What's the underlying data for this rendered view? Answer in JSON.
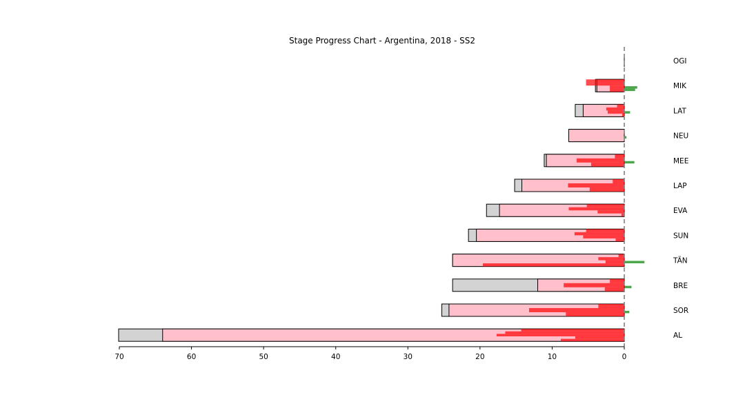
{
  "chart_data": {
    "type": "bar",
    "title": "Stage Progress Chart - Argentina, 2018 - SS2",
    "xlabel": "",
    "ylabel": "",
    "xlim": [
      70,
      -3
    ],
    "xticks": [
      70,
      60,
      50,
      40,
      30,
      20,
      10,
      0
    ],
    "reference_line": 0,
    "colors": {
      "gap_bar": "#d3d3d3",
      "split_bar": "#ffc0cb",
      "loss_segment": "#ff0000",
      "gain_segment": "#008000",
      "reference_line": "#808080"
    },
    "drivers": [
      {
        "name": "OGI",
        "overall_gap": 0,
        "split_gap": 0,
        "losses": [],
        "gains": []
      },
      {
        "name": "MIK",
        "overall_gap": 4,
        "split_gap": 3.8,
        "losses": [
          5.3,
          2.0
        ],
        "gains": [
          1.8,
          1.5
        ]
      },
      {
        "name": "LAT",
        "overall_gap": 6.8,
        "split_gap": 5.7,
        "losses": [
          1.0,
          2.5,
          2.3,
          0.3
        ],
        "gains": [
          0.8
        ]
      },
      {
        "name": "NEU",
        "overall_gap": 7.7,
        "split_gap": 7.7,
        "losses": [],
        "gains": [
          0.3
        ]
      },
      {
        "name": "MEE",
        "overall_gap": 11.1,
        "split_gap": 10.8,
        "losses": [
          1.3,
          6.6,
          4.6
        ],
        "gains": [
          1.4
        ]
      },
      {
        "name": "LAP",
        "overall_gap": 15.2,
        "split_gap": 14.2,
        "losses": [
          1.6,
          7.8,
          4.8
        ],
        "gains": []
      },
      {
        "name": "EVA",
        "overall_gap": 19.1,
        "split_gap": 17.3,
        "losses": [
          5.2,
          7.7,
          3.7,
          0.4
        ],
        "gains": []
      },
      {
        "name": "SUN",
        "overall_gap": 21.6,
        "split_gap": 20.5,
        "losses": [
          5.3,
          6.9,
          5.7,
          1.2
        ],
        "gains": []
      },
      {
        "name": "TÄN",
        "overall_gap": 23.8,
        "split_gap": 23.8,
        "losses": [
          0.8,
          3.6,
          2.6,
          19.6
        ],
        "gains": [
          2.8
        ]
      },
      {
        "name": "BRE",
        "overall_gap": 23.8,
        "split_gap": 12.0,
        "losses": [
          2.0,
          8.4,
          2.7
        ],
        "gains": [
          1.0
        ]
      },
      {
        "name": "SOR",
        "overall_gap": 25.3,
        "split_gap": 24.3,
        "losses": [
          3.6,
          13.2,
          8.1
        ],
        "gains": [
          0.7
        ]
      },
      {
        "name": "AL",
        "overall_gap": 70.1,
        "split_gap": 64.0,
        "losses": [
          14.3,
          16.5,
          17.7,
          6.8,
          8.8
        ],
        "gains": []
      }
    ]
  }
}
